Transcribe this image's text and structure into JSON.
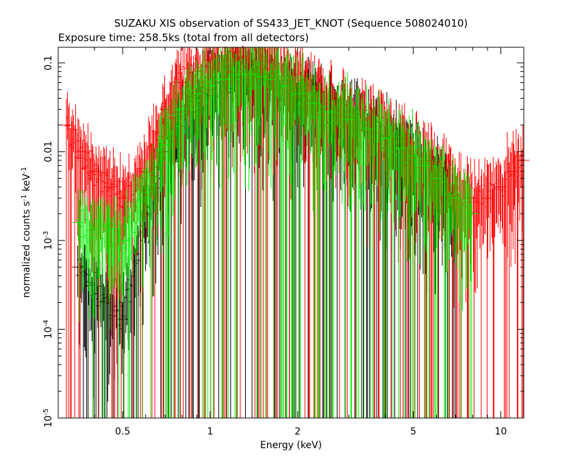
{
  "chart_data": {
    "type": "scatter",
    "title": "SUZAKU XIS observation of SS433_JET_KNOT (Sequence 508024010)",
    "subtitle": "Exposure time: 258.5ks (total from all detectors)",
    "xlabel": "Energy (keV)",
    "ylabel_main": "normalized counts s",
    "ylabel_sup1": "-1",
    "ylabel_mid": " keV",
    "ylabel_sup2": "-1",
    "x_scale": "log",
    "y_scale": "log",
    "xlim": [
      0.3,
      12
    ],
    "ylim": [
      1e-05,
      0.15
    ],
    "x_ticks": [
      {
        "value": 0.5,
        "label": "0.5"
      },
      {
        "value": 1,
        "label": "1"
      },
      {
        "value": 2,
        "label": "2"
      },
      {
        "value": 5,
        "label": "5"
      },
      {
        "value": 10,
        "label": "10"
      }
    ],
    "y_ticks": [
      {
        "value": 1e-05,
        "base": "10",
        "exp": "-5"
      },
      {
        "value": 0.0001,
        "base": "10",
        "exp": "-4"
      },
      {
        "value": 0.001,
        "base": "10",
        "exp": "-3"
      },
      {
        "value": 0.01,
        "base": "0.01",
        "exp": ""
      },
      {
        "value": 0.1,
        "base": "0.1",
        "exp": ""
      }
    ],
    "grid": false,
    "legend": "none",
    "series": [
      {
        "color": "#000000",
        "x": [
          0.35,
          0.5,
          0.6,
          0.7,
          0.8,
          0.9,
          1.0,
          1.1,
          1.2,
          1.3,
          1.4,
          1.5,
          1.6,
          1.8,
          2.0,
          2.3,
          2.6,
          3.0,
          3.5,
          4.0,
          4.5,
          5.0,
          5.5,
          6.0,
          7.0
        ],
        "y": [
          0.0005,
          0.00013,
          0.002,
          0.01,
          0.025,
          0.04,
          0.05,
          0.06,
          0.07,
          0.075,
          0.075,
          0.07,
          0.065,
          0.055,
          0.045,
          0.035,
          0.03,
          0.025,
          0.02,
          0.015,
          0.012,
          0.009,
          0.007,
          0.005,
          0.003
        ]
      },
      {
        "color": "#ff0000",
        "x": [
          0.32,
          0.36,
          0.4,
          0.45,
          0.5,
          0.6,
          0.7,
          0.8,
          0.9,
          1.0,
          1.1,
          1.2,
          1.3,
          1.4,
          1.5,
          1.6,
          1.8,
          2.0,
          2.3,
          2.6,
          3.0,
          3.5,
          4.0,
          4.5,
          5.0,
          5.5,
          6.0,
          7.0,
          8.0,
          9.0,
          10.0,
          11.0,
          12.0
        ],
        "y": [
          0.02,
          0.01,
          0.006,
          0.004,
          0.003,
          0.006,
          0.03,
          0.06,
          0.08,
          0.09,
          0.1,
          0.11,
          0.11,
          0.1,
          0.095,
          0.085,
          0.07,
          0.055,
          0.042,
          0.035,
          0.028,
          0.022,
          0.017,
          0.013,
          0.01,
          0.008,
          0.006,
          0.004,
          0.003,
          0.003,
          0.004,
          0.006,
          0.008
        ]
      },
      {
        "color": "#00ee00",
        "x": [
          0.35,
          0.5,
          0.6,
          0.7,
          0.8,
          0.9,
          1.0,
          1.1,
          1.2,
          1.3,
          1.4,
          1.5,
          1.6,
          1.8,
          2.0,
          2.3,
          2.6,
          3.0,
          3.5,
          4.0,
          4.5,
          5.0,
          5.5,
          6.0,
          7.0,
          8.0
        ],
        "y": [
          0.0016,
          0.001,
          0.003,
          0.012,
          0.03,
          0.045,
          0.055,
          0.065,
          0.072,
          0.075,
          0.075,
          0.07,
          0.065,
          0.055,
          0.045,
          0.035,
          0.028,
          0.023,
          0.018,
          0.014,
          0.011,
          0.009,
          0.007,
          0.005,
          0.003,
          0.002
        ]
      }
    ]
  }
}
